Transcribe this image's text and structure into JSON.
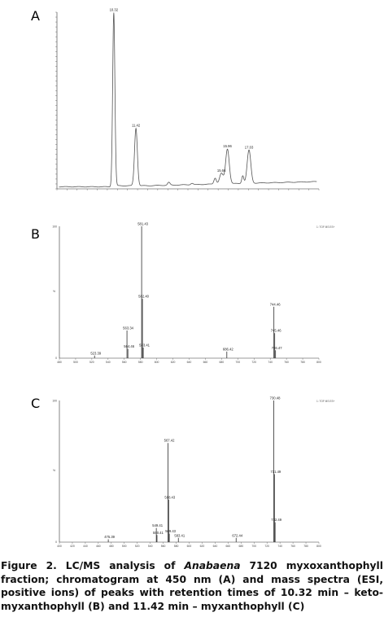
{
  "panels": {
    "a": "A",
    "b": "B",
    "c": "C"
  },
  "caption": {
    "part1": "Figure 2. LC/MS analysis of ",
    "species": "Anabaena",
    "part2": " 7120 myxoxanthophyll fraction; chromatogram at 450 nm (A) and mass spectra (ESI, positive ions) of peaks with retention times of 10.32 min – keto-myxanthophyll (B) and 11.42 min – myxanthophyll (C)"
  },
  "chart_data": [
    {
      "type": "line",
      "panel": "A",
      "title": "",
      "xlabel": "",
      "ylabel": "",
      "peaks": [
        {
          "x": 10.32,
          "rel": 100,
          "label": "10.32"
        },
        {
          "x": 11.42,
          "rel": 33,
          "label": "11.42"
        },
        {
          "x": 15.66,
          "rel": 6,
          "label": "15.66"
        },
        {
          "x": 15.96,
          "rel": 20,
          "label": "15.96"
        },
        {
          "x": 17.03,
          "rel": 19,
          "label": "17.03"
        }
      ]
    },
    {
      "type": "bar",
      "panel": "B",
      "annotation": "1: TOF MS ES+",
      "xlim": [
        480,
        800
      ],
      "ylim": [
        0,
        100
      ],
      "xticks": [
        480,
        500,
        520,
        540,
        560,
        580,
        600,
        620,
        640,
        660,
        680,
        700,
        720,
        740,
        760,
        780,
        800
      ],
      "yticks": [
        0,
        100
      ],
      "ymid": "%",
      "peaks": [
        {
          "mz": 523.39,
          "rel": 2,
          "label": "523.39"
        },
        {
          "mz": 563.34,
          "rel": 21,
          "label": "563.34"
        },
        {
          "mz": 564.46,
          "rel": 7,
          "label": "564.46"
        },
        {
          "mz": 581.43,
          "rel": 100,
          "label": "581.43"
        },
        {
          "mz": 582.4,
          "rel": 45,
          "label": "582.40"
        },
        {
          "mz": 583.41,
          "rel": 8,
          "label": "583.41"
        },
        {
          "mz": 686.42,
          "rel": 5,
          "label": "686.42"
        },
        {
          "mz": 744.46,
          "rel": 39,
          "label": "744.46"
        },
        {
          "mz": 745.46,
          "rel": 19,
          "label": "745.46"
        },
        {
          "mz": 746.47,
          "rel": 6,
          "label": "746.47"
        }
      ]
    },
    {
      "type": "bar",
      "panel": "C",
      "annotation": "1: TOF MS ES+",
      "xlim": [
        400,
        800
      ],
      "ylim": [
        0,
        100
      ],
      "xticks": [
        400,
        420,
        440,
        460,
        480,
        500,
        520,
        540,
        560,
        580,
        600,
        620,
        640,
        660,
        680,
        700,
        720,
        740,
        760,
        780,
        800
      ],
      "yticks": [
        0,
        100
      ],
      "ymid": "%",
      "peaks": [
        {
          "mz": 475.39,
          "rel": 2,
          "label": "475.39"
        },
        {
          "mz": 549.41,
          "rel": 10,
          "label": "549.41"
        },
        {
          "mz": 550.41,
          "rel": 5,
          "label": "550.41"
        },
        {
          "mz": 567.42,
          "rel": 70,
          "label": "567.42"
        },
        {
          "mz": 568.43,
          "rel": 30,
          "label": "568.43"
        },
        {
          "mz": 569.43,
          "rel": 6,
          "label": "569.43"
        },
        {
          "mz": 583.41,
          "rel": 3,
          "label": "583.41"
        },
        {
          "mz": 672.44,
          "rel": 3,
          "label": "672.44"
        },
        {
          "mz": 730.48,
          "rel": 100,
          "label": "730.48"
        },
        {
          "mz": 731.49,
          "rel": 48,
          "label": "731.49"
        },
        {
          "mz": 732.49,
          "rel": 14,
          "label": "732.49"
        }
      ]
    }
  ]
}
